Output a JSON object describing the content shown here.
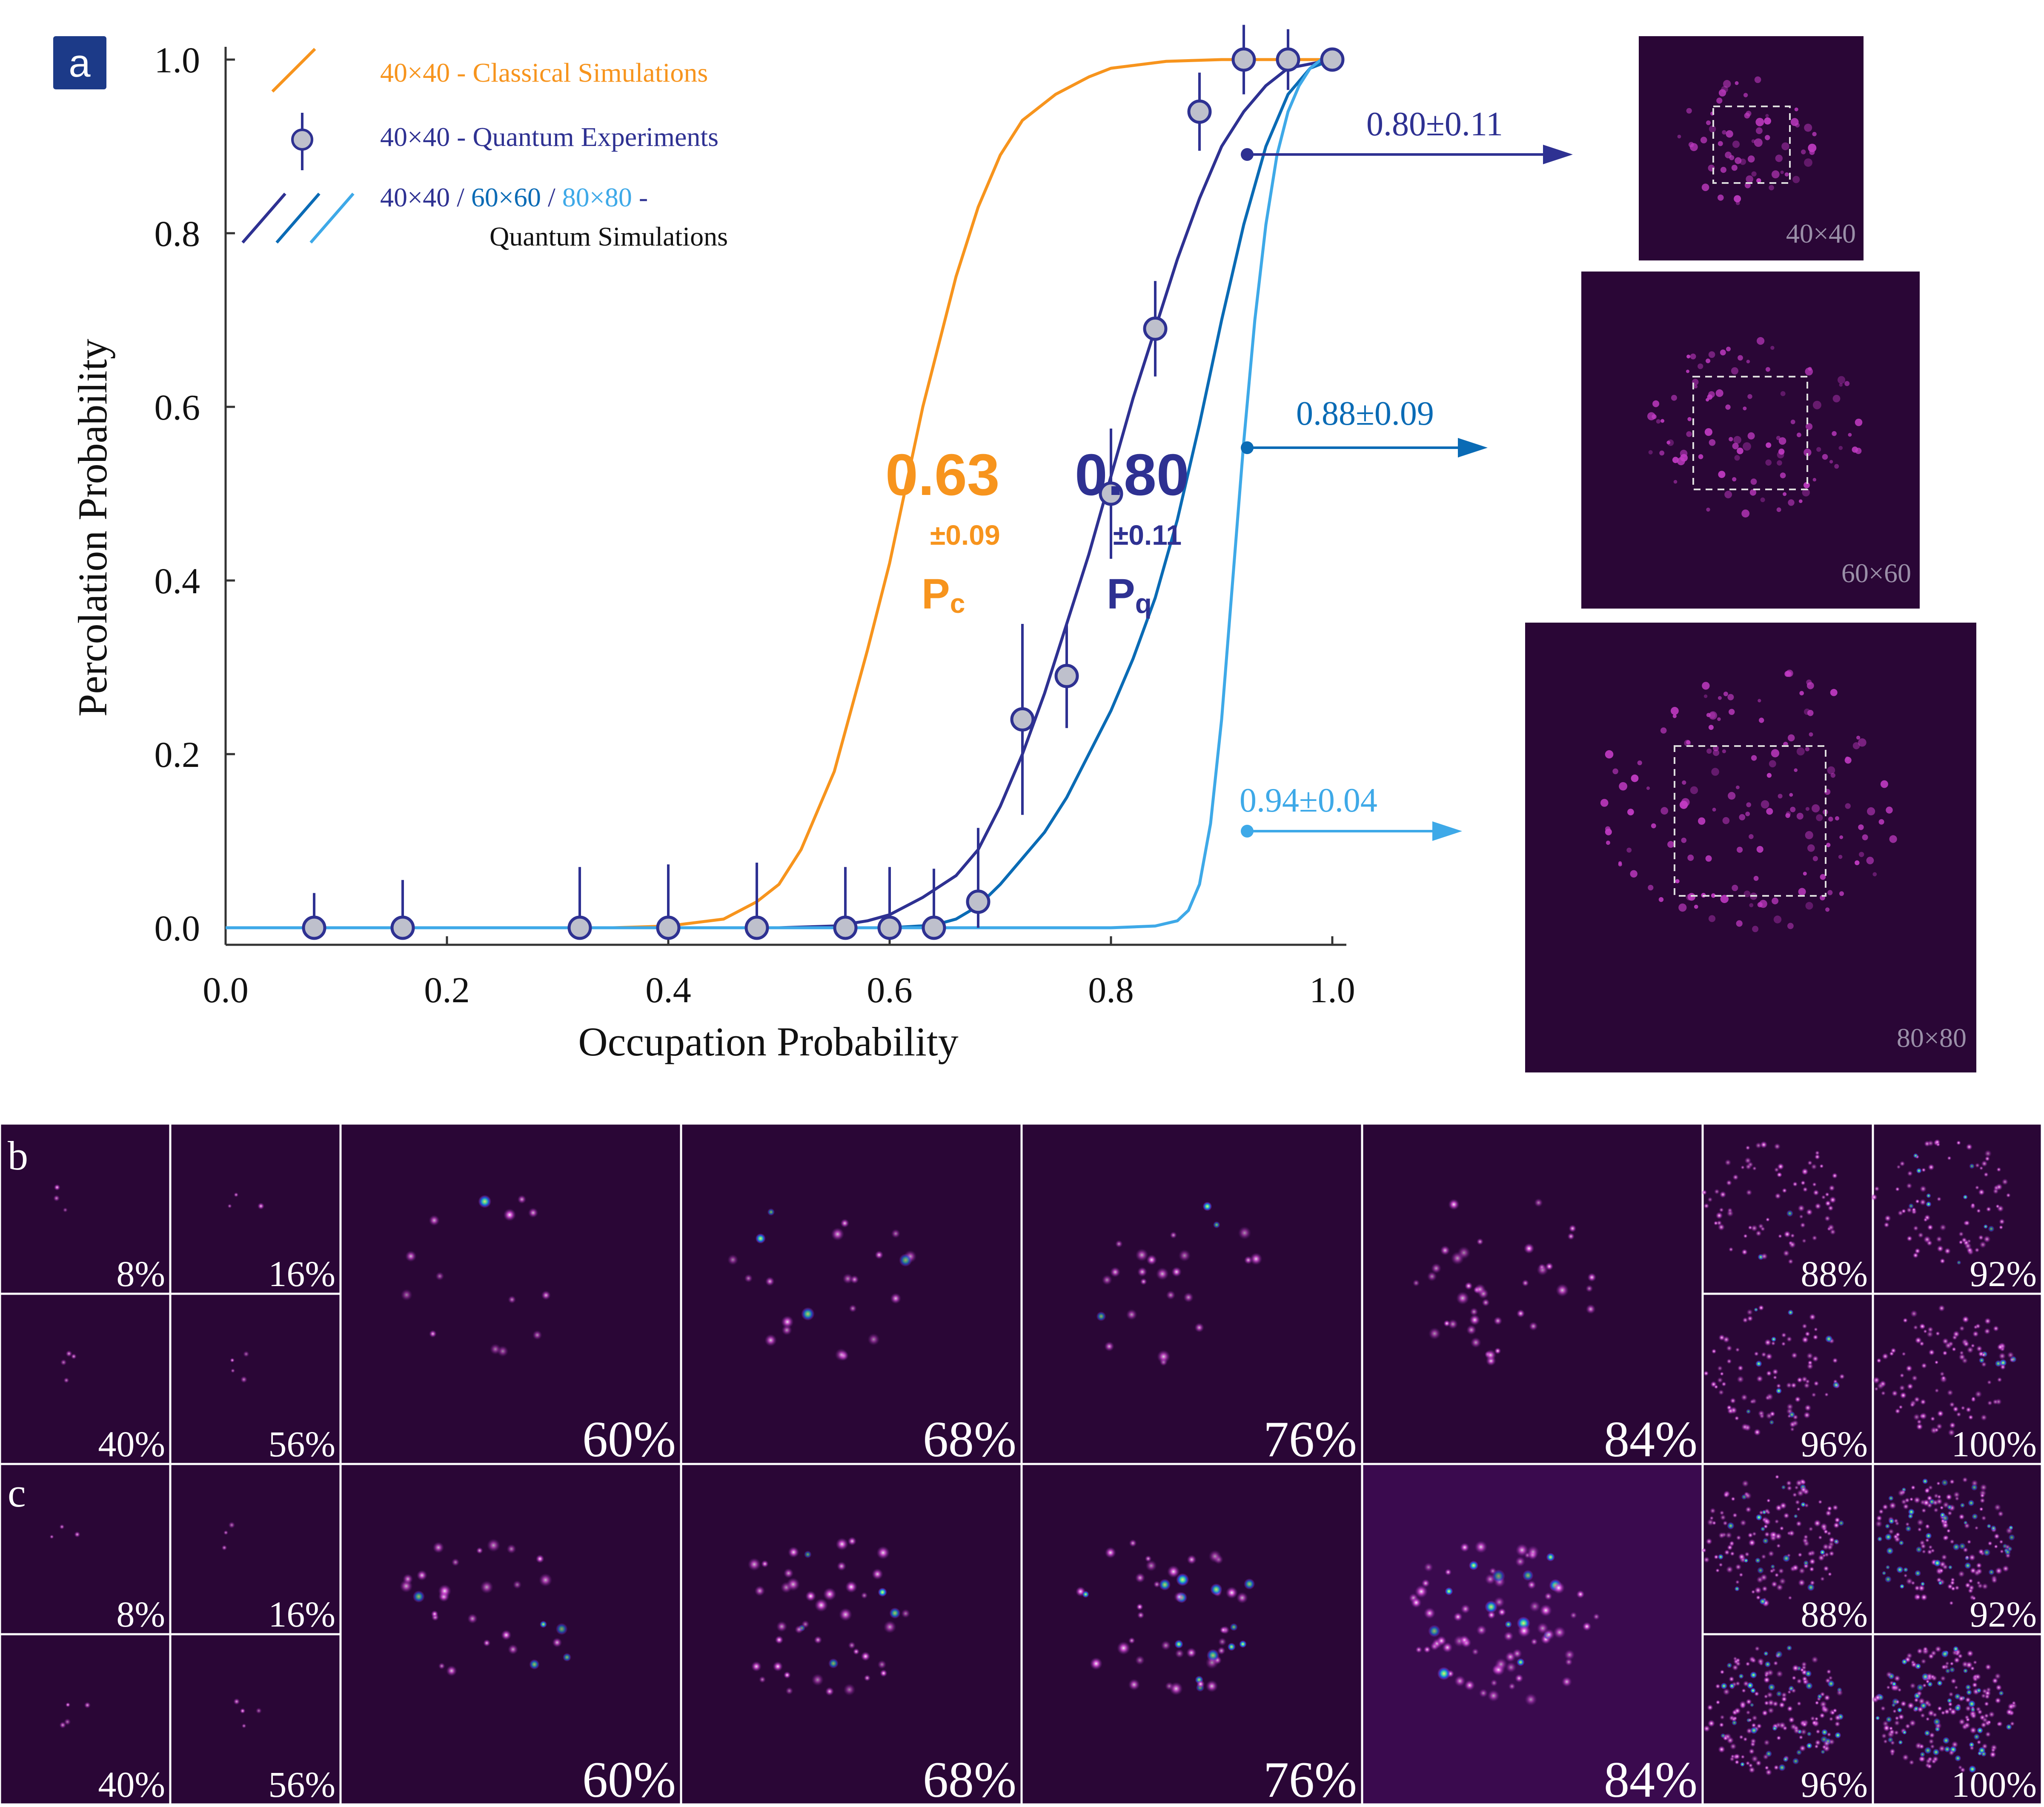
{
  "figure": {
    "panel_labels": {
      "a": "a",
      "b": "b",
      "c": "c"
    },
    "colors": {
      "classical": "#F7941D",
      "q40": "#2E3192",
      "q60": "#0A6BB5",
      "q80": "#3EA9E8",
      "marker_fill": "#BEC0CC",
      "panel_label_bg": "#1C3A88",
      "tile_bg": "#2A0636",
      "tile_spot": "#D93FD1",
      "tile_spot_hot": "#5CF2A8"
    },
    "side_panels": [
      {
        "label": "40×40",
        "value_text": "0.80±0.11",
        "color": "#2E3192"
      },
      {
        "label": "60×60",
        "value_text": "0.88±0.09",
        "color": "#0A6BB5"
      },
      {
        "label": "80×80",
        "value_text": "0.94±0.04",
        "color": "#3EA9E8"
      }
    ],
    "annotations": {
      "pc_value": "0.63",
      "pc_err": "±0.09",
      "pc_label": "P",
      "pc_sub": "c",
      "pq_value": "0.80",
      "pq_err": "±0.11",
      "pq_label": "P",
      "pq_sub": "q"
    },
    "row_b": {
      "label": "b",
      "tiles": [
        "8%",
        "16%",
        "40%",
        "56%",
        "60%",
        "68%",
        "76%",
        "84%",
        "88%",
        "92%",
        "96%",
        "100%"
      ]
    },
    "row_c": {
      "label": "c",
      "tiles": [
        "8%",
        "16%",
        "40%",
        "56%",
        "60%",
        "68%",
        "76%",
        "84%",
        "88%",
        "92%",
        "96%",
        "100%"
      ]
    }
  },
  "chart_data": {
    "type": "line",
    "title": "",
    "xlabel": "Occupation Probability",
    "ylabel": "Percolation Probability",
    "xlim": [
      0.0,
      1.0
    ],
    "ylim": [
      0.0,
      1.0
    ],
    "xticks": [
      "0.0",
      "0.2",
      "0.4",
      "0.6",
      "0.8",
      "1.0"
    ],
    "yticks": [
      "0.0",
      "0.2",
      "0.4",
      "0.6",
      "0.8",
      "1.0"
    ],
    "grid": false,
    "legend": {
      "position": "top-left",
      "entries": [
        {
          "text": "40×40 - Classical Simulations",
          "color": "#F7941D"
        },
        {
          "text": "40×40 - Quantum Experiments",
          "color": "#2E3192"
        },
        {
          "parts": [
            {
              "text": "40×40",
              "color": "#2E3192"
            },
            {
              "text": " / ",
              "color": "#2E3192"
            },
            {
              "text": "60×60",
              "color": "#0A6BB5"
            },
            {
              "text": " / ",
              "color": "#2E3192"
            },
            {
              "text": "80×80",
              "color": "#3EA9E8"
            },
            {
              "text": " -",
              "color": "#2E3192"
            }
          ],
          "second_line": "Quantum Simulations"
        }
      ]
    },
    "series": [
      {
        "name": "40×40 - Classical Simulations",
        "kind": "curve",
        "color": "#F7941D",
        "x": [
          0.0,
          0.05,
          0.1,
          0.15,
          0.2,
          0.25,
          0.3,
          0.35,
          0.4,
          0.45,
          0.48,
          0.5,
          0.52,
          0.55,
          0.58,
          0.6,
          0.63,
          0.66,
          0.68,
          0.7,
          0.72,
          0.75,
          0.78,
          0.8,
          0.85,
          0.9,
          0.95,
          1.0
        ],
        "y": [
          0.0,
          0.0,
          0.0,
          0.0,
          0.0,
          0.0,
          0.0,
          0.0,
          0.002,
          0.01,
          0.03,
          0.05,
          0.09,
          0.18,
          0.32,
          0.42,
          0.6,
          0.75,
          0.83,
          0.89,
          0.93,
          0.96,
          0.98,
          0.99,
          0.998,
          1.0,
          1.0,
          1.0
        ]
      },
      {
        "name": "40×40 - Quantum Simulations",
        "kind": "curve",
        "color": "#2E3192",
        "x": [
          0.0,
          0.1,
          0.2,
          0.3,
          0.4,
          0.5,
          0.55,
          0.58,
          0.6,
          0.63,
          0.66,
          0.68,
          0.7,
          0.72,
          0.74,
          0.76,
          0.78,
          0.8,
          0.82,
          0.84,
          0.86,
          0.88,
          0.9,
          0.92,
          0.94,
          0.96,
          1.0
        ],
        "y": [
          0.0,
          0.0,
          0.0,
          0.0,
          0.0,
          0.0,
          0.002,
          0.008,
          0.015,
          0.035,
          0.06,
          0.09,
          0.14,
          0.2,
          0.27,
          0.35,
          0.43,
          0.52,
          0.61,
          0.69,
          0.77,
          0.84,
          0.9,
          0.94,
          0.97,
          0.99,
          1.0
        ]
      },
      {
        "name": "60×60 - Quantum Simulations",
        "kind": "curve",
        "color": "#0A6BB5",
        "x": [
          0.0,
          0.1,
          0.2,
          0.3,
          0.4,
          0.5,
          0.6,
          0.64,
          0.66,
          0.68,
          0.7,
          0.72,
          0.74,
          0.76,
          0.78,
          0.8,
          0.82,
          0.84,
          0.86,
          0.88,
          0.9,
          0.92,
          0.94,
          0.96,
          0.98,
          1.0
        ],
        "y": [
          0.0,
          0.0,
          0.0,
          0.0,
          0.0,
          0.0,
          0.0,
          0.003,
          0.01,
          0.025,
          0.05,
          0.08,
          0.11,
          0.15,
          0.2,
          0.25,
          0.31,
          0.38,
          0.47,
          0.58,
          0.7,
          0.81,
          0.9,
          0.96,
          0.99,
          1.0
        ]
      },
      {
        "name": "80×80 - Quantum Simulations",
        "kind": "curve",
        "color": "#3EA9E8",
        "x": [
          0.0,
          0.2,
          0.4,
          0.6,
          0.8,
          0.84,
          0.86,
          0.87,
          0.88,
          0.89,
          0.9,
          0.91,
          0.92,
          0.93,
          0.94,
          0.95,
          0.96,
          0.97,
          0.98,
          0.99,
          1.0
        ],
        "y": [
          0.0,
          0.0,
          0.0,
          0.0,
          0.0,
          0.002,
          0.008,
          0.02,
          0.05,
          0.12,
          0.24,
          0.4,
          0.56,
          0.7,
          0.81,
          0.89,
          0.94,
          0.97,
          0.99,
          1.0,
          1.0
        ]
      },
      {
        "name": "40×40 - Quantum Experiments",
        "kind": "points",
        "color": "#2E3192",
        "x": [
          0.08,
          0.16,
          0.32,
          0.4,
          0.48,
          0.56,
          0.6,
          0.64,
          0.68,
          0.72,
          0.76,
          0.8,
          0.84,
          0.88,
          0.92,
          0.96,
          1.0
        ],
        "y": [
          0.0,
          0.0,
          0.0,
          0.0,
          0.0,
          0.0,
          0.0,
          0.0,
          0.03,
          0.24,
          0.29,
          0.5,
          0.69,
          0.94,
          1.0,
          1.0,
          1.0
        ],
        "err": [
          0.04,
          0.055,
          0.07,
          0.073,
          0.075,
          0.07,
          0.07,
          0.068,
          0.085,
          0.11,
          0.06,
          0.075,
          0.055,
          0.045,
          0.04,
          0.035,
          0.0
        ]
      }
    ]
  }
}
